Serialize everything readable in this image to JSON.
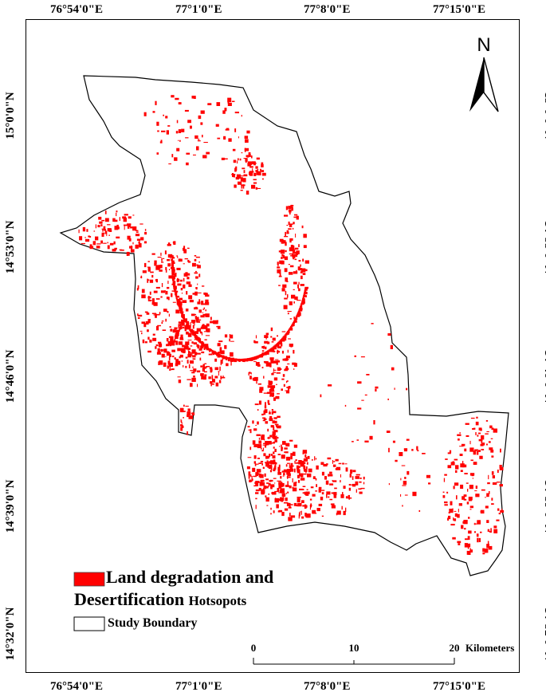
{
  "map": {
    "lon_labels": [
      "76°54'0\"E",
      "77°1'0\"E",
      "77°8'0\"E",
      "77°15'0\"E"
    ],
    "lat_labels": [
      "15°0'0\"N",
      "14°53'0\"N",
      "14°46'0\"N",
      "14°39'0\"N",
      "14°32'0\"N"
    ],
    "north_label": "N",
    "hotspot_color": "#ff0000",
    "boundary_color": "#000000"
  },
  "legend": {
    "hotspot_line1": "Land degradation and",
    "hotspot_line2": "Desertification",
    "hotspot_line2_suffix": "Hotsopots",
    "boundary": "Study Boundary"
  },
  "scale_bar": {
    "ticks": [
      "0",
      "10",
      "20"
    ],
    "unit": "Kilometers"
  }
}
